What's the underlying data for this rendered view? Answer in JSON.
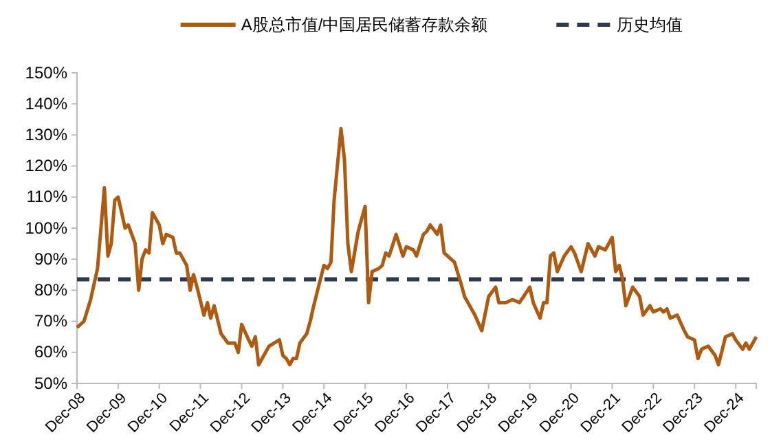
{
  "chart_data": {
    "type": "line",
    "legend": "top",
    "line_style": "solid",
    "xlim": [
      "2008-12",
      "2025-06"
    ],
    "xticks": [
      {
        "value": "2008-12",
        "label": "Dec-08"
      },
      {
        "value": "2009-12",
        "label": "Dec-09"
      },
      {
        "value": "2010-12",
        "label": "Dec-10"
      },
      {
        "value": "2011-12",
        "label": "Dec-11"
      },
      {
        "value": "2012-12",
        "label": "Dec-12"
      },
      {
        "value": "2013-12",
        "label": "Dec-13"
      },
      {
        "value": "2014-12",
        "label": "Dec-14"
      },
      {
        "value": "2015-12",
        "label": "Dec-15"
      },
      {
        "value": "2016-12",
        "label": "Dec-16"
      },
      {
        "value": "2017-12",
        "label": "Dec-17"
      },
      {
        "value": "2018-12",
        "label": "Dec-18"
      },
      {
        "value": "2019-12",
        "label": "Dec-19"
      },
      {
        "value": "2020-12",
        "label": "Dec-20"
      },
      {
        "value": "2021-12",
        "label": "Dec-21"
      },
      {
        "value": "2022-12",
        "label": "Dec-22"
      },
      {
        "value": "2023-12",
        "label": "Dec-23"
      },
      {
        "value": "2024-12",
        "label": "Dec-24"
      }
    ],
    "ylim": [
      50,
      150
    ],
    "yticks": [
      {
        "value": 50,
        "label": "50%"
      },
      {
        "value": 60,
        "label": "60%"
      },
      {
        "value": 70,
        "label": "70%"
      },
      {
        "value": 80,
        "label": "80%"
      },
      {
        "value": 90,
        "label": "90%"
      },
      {
        "value": 100,
        "label": "100%"
      },
      {
        "value": 110,
        "label": "110%"
      },
      {
        "value": 120,
        "label": "120%"
      },
      {
        "value": 130,
        "label": "130%"
      },
      {
        "value": 140,
        "label": "140%"
      },
      {
        "value": 150,
        "label": "150%"
      }
    ],
    "ref_lines": [
      {
        "axis": "y",
        "value": 83.5,
        "label": "历史均值",
        "color": "#2e3a4f",
        "line_style": "dashed"
      }
    ],
    "series": [
      {
        "name": "A股总市值/中国居民储蓄存款余额",
        "color": "#b05a10",
        "x": [
          "2008-12",
          "2009-02",
          "2009-04",
          "2009-06",
          "2009-08",
          "2009-09",
          "2009-10",
          "2009-11",
          "2009-12",
          "2010-02",
          "2010-03",
          "2010-05",
          "2010-06",
          "2010-07",
          "2010-08",
          "2010-09",
          "2010-10",
          "2010-12",
          "2011-01",
          "2011-02",
          "2011-04",
          "2011-05",
          "2011-06",
          "2011-08",
          "2011-09",
          "2011-10",
          "2011-11",
          "2012-01",
          "2012-02",
          "2012-03",
          "2012-04",
          "2012-06",
          "2012-08",
          "2012-10",
          "2012-11",
          "2012-12",
          "2013-02",
          "2013-03",
          "2013-04",
          "2013-05",
          "2013-07",
          "2013-08",
          "2013-11",
          "2013-12",
          "2014-01",
          "2014-02",
          "2014-03",
          "2014-04",
          "2014-05",
          "2014-07",
          "2014-08",
          "2014-09",
          "2014-12",
          "2015-01",
          "2015-02",
          "2015-03",
          "2015-05",
          "2015-06",
          "2015-07",
          "2015-08",
          "2015-10",
          "2015-12",
          "2016-01",
          "2016-02",
          "2016-04",
          "2016-05",
          "2016-06",
          "2016-07",
          "2016-09",
          "2016-11",
          "2016-12",
          "2017-02",
          "2017-03",
          "2017-05",
          "2017-06",
          "2017-07",
          "2017-09",
          "2017-10",
          "2017-11",
          "2018-02",
          "2018-04",
          "2018-05",
          "2018-08",
          "2018-10",
          "2018-12",
          "2019-02",
          "2019-03",
          "2019-05",
          "2019-07",
          "2019-09",
          "2019-12",
          "2020-01",
          "2020-03",
          "2020-04",
          "2020-05",
          "2020-06",
          "2020-07",
          "2020-08",
          "2020-10",
          "2020-12",
          "2021-01",
          "2021-03",
          "2021-05",
          "2021-07",
          "2021-08",
          "2021-10",
          "2021-12",
          "2022-01",
          "2022-02",
          "2022-03",
          "2022-04",
          "2022-06",
          "2022-08",
          "2022-09",
          "2022-11",
          "2022-12",
          "2023-02",
          "2023-03",
          "2023-04",
          "2023-05",
          "2023-07",
          "2023-09",
          "2023-10",
          "2023-12",
          "2024-01",
          "2024-02",
          "2024-04",
          "2024-06",
          "2024-07",
          "2024-09",
          "2024-11",
          "2024-12",
          "2025-02",
          "2025-03",
          "2025-04",
          "2025-06"
        ],
        "values": [
          68,
          70,
          77,
          87,
          113,
          91,
          95,
          109,
          110,
          100,
          101,
          95,
          80,
          90,
          93,
          92,
          105,
          101,
          95,
          98,
          97,
          92,
          92,
          88,
          80,
          85,
          81,
          72,
          76,
          71,
          75,
          66,
          63,
          63,
          60,
          69,
          64,
          62,
          65,
          56,
          60,
          62,
          64,
          59,
          58,
          56,
          58,
          58,
          63,
          66,
          70,
          75,
          88,
          87,
          89,
          109,
          132,
          122,
          95,
          86,
          99,
          107,
          76,
          86,
          87,
          88,
          92,
          91,
          98,
          91,
          94,
          93,
          91,
          98,
          99,
          101,
          98,
          101,
          92,
          89,
          82,
          78,
          72,
          67,
          78,
          81,
          76,
          76,
          77,
          76,
          81,
          76,
          71,
          76,
          76,
          91,
          92,
          86,
          91,
          94,
          92,
          86,
          95,
          91,
          94,
          93,
          97,
          86,
          88,
          84,
          75,
          81,
          78,
          72,
          75,
          73,
          74,
          73,
          74,
          71,
          72,
          67,
          65,
          64,
          58,
          61,
          62,
          59,
          56,
          65,
          66,
          64,
          61,
          63,
          61,
          65
        ]
      }
    ]
  }
}
